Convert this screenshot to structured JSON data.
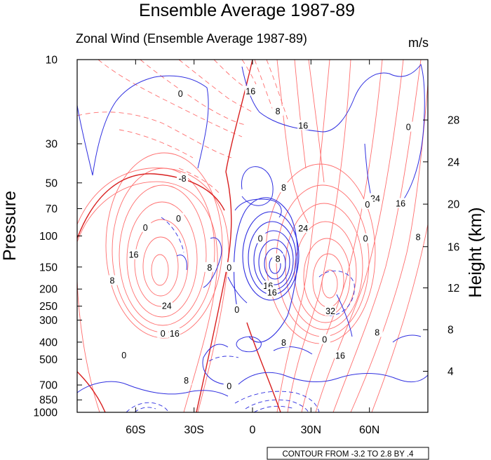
{
  "colors": {
    "positive": "#ff3b3b",
    "positive_thin": "#ff7a7a",
    "negative": "#2f2fe0",
    "zero": "#d81e1e",
    "frame": "#000000"
  },
  "chart_data": {
    "type": "contour",
    "title": "Ensemble Average 1987-89",
    "subtitle_left": "Zonal Wind (Ensemble Average 1987-89)",
    "subtitle_right": "m/s",
    "xlabel": "",
    "ylabel_left": "Pressure",
    "ylabel_right": "Height (km)",
    "footer": "CONTOUR FROM -3.2 TO 2.8 BY .4",
    "x_ticks": [
      {
        "label": "60S",
        "lat": -60
      },
      {
        "label": "30S",
        "lat": -30
      },
      {
        "label": "0",
        "lat": 0
      },
      {
        "label": "30N",
        "lat": 30
      },
      {
        "label": "60N",
        "lat": 60
      }
    ],
    "xlim": [
      -90,
      90
    ],
    "y_ticks_pressure": [
      {
        "label": "10",
        "p": 10
      },
      {
        "label": "30",
        "p": 30
      },
      {
        "label": "50",
        "p": 50
      },
      {
        "label": "70",
        "p": 70
      },
      {
        "label": "100",
        "p": 100
      },
      {
        "label": "150",
        "p": 150
      },
      {
        "label": "200",
        "p": 200
      },
      {
        "label": "250",
        "p": 250
      },
      {
        "label": "300",
        "p": 300
      },
      {
        "label": "400",
        "p": 400
      },
      {
        "label": "500",
        "p": 500
      },
      {
        "label": "700",
        "p": 700
      },
      {
        "label": "850",
        "p": 850
      },
      {
        "label": "1000",
        "p": 1000
      }
    ],
    "ylim_pressure": [
      1000,
      10
    ],
    "y_ticks_height": [
      {
        "label": "4",
        "p": 585
      },
      {
        "label": "8",
        "p": 340
      },
      {
        "label": "12",
        "p": 197
      },
      {
        "label": "16",
        "p": 115
      },
      {
        "label": "20",
        "p": 66
      },
      {
        "label": "24",
        "p": 38
      },
      {
        "label": "28",
        "p": 22
      }
    ],
    "contour_labels": [
      {
        "text": "0",
        "lat": -37,
        "p": 15.5,
        "sign": "zero"
      },
      {
        "text": "16",
        "lat": -1,
        "p": 15,
        "sign": "neg"
      },
      {
        "text": "8",
        "lat": 13,
        "p": 19.5,
        "sign": "neg"
      },
      {
        "text": "16",
        "lat": 26,
        "p": 23.5,
        "sign": "neg"
      },
      {
        "text": "0",
        "lat": 80,
        "p": 24,
        "sign": "zero"
      },
      {
        "text": "-8",
        "lat": -36,
        "p": 47,
        "sign": "neg"
      },
      {
        "text": "8",
        "lat": 16,
        "p": 53,
        "sign": "pos"
      },
      {
        "text": "24",
        "lat": 63,
        "p": 61,
        "sign": "pos"
      },
      {
        "text": "0",
        "lat": 59,
        "p": 66,
        "sign": "zero"
      },
      {
        "text": "16",
        "lat": 76,
        "p": 65,
        "sign": "pos"
      },
      {
        "text": "0",
        "lat": -38,
        "p": 79,
        "sign": "zero"
      },
      {
        "text": "0",
        "lat": -55,
        "p": 89,
        "sign": "zero"
      },
      {
        "text": "24",
        "lat": 26,
        "p": 90,
        "sign": "pos"
      },
      {
        "text": "0",
        "lat": 4,
        "p": 103,
        "sign": "zero"
      },
      {
        "text": "0",
        "lat": 58,
        "p": 103,
        "sign": "zero"
      },
      {
        "text": "8",
        "lat": 85,
        "p": 101,
        "sign": "pos"
      },
      {
        "text": "16",
        "lat": -61,
        "p": 127,
        "sign": "pos"
      },
      {
        "text": "8",
        "lat": -22,
        "p": 150,
        "sign": "pos"
      },
      {
        "text": "0",
        "lat": -12,
        "p": 150,
        "sign": "zero"
      },
      {
        "text": "8",
        "lat": 13,
        "p": 134,
        "sign": "pos"
      },
      {
        "text": "8",
        "lat": -72,
        "p": 178,
        "sign": "pos"
      },
      {
        "text": "16",
        "lat": 8,
        "p": 191,
        "sign": "neg"
      },
      {
        "text": "16",
        "lat": 10,
        "p": 208,
        "sign": "neg"
      },
      {
        "text": "24",
        "lat": -44,
        "p": 247,
        "sign": "pos"
      },
      {
        "text": "32",
        "lat": 40,
        "p": 265,
        "sign": "pos"
      },
      {
        "text": "0",
        "lat": -8,
        "p": 260,
        "sign": "zero"
      },
      {
        "text": "0",
        "lat": -46,
        "p": 355,
        "sign": "zero"
      },
      {
        "text": "16",
        "lat": -40,
        "p": 355,
        "sign": "pos"
      },
      {
        "text": "8",
        "lat": 64,
        "p": 350,
        "sign": "pos"
      },
      {
        "text": "0",
        "lat": 37,
        "p": 385,
        "sign": "zero"
      },
      {
        "text": "8",
        "lat": 16,
        "p": 400,
        "sign": "pos"
      },
      {
        "text": "0",
        "lat": -66,
        "p": 472,
        "sign": "zero"
      },
      {
        "text": "16",
        "lat": 45,
        "p": 475,
        "sign": "pos"
      },
      {
        "text": "8",
        "lat": -34,
        "p": 655,
        "sign": "pos"
      },
      {
        "text": "0",
        "lat": -12,
        "p": 705,
        "sign": "zero"
      }
    ],
    "jets": [
      {
        "name": "southern-hemisphere-subtropical-jet",
        "lat": -48,
        "p": 200,
        "peak": 32,
        "sign": "pos"
      },
      {
        "name": "northern-hemisphere-subtropical-jet",
        "lat": 42,
        "p": 210,
        "peak": 40,
        "sign": "pos"
      },
      {
        "name": "equatorial-easterlies",
        "lat": 8,
        "p": 180,
        "peak": -24,
        "sign": "neg"
      }
    ]
  }
}
